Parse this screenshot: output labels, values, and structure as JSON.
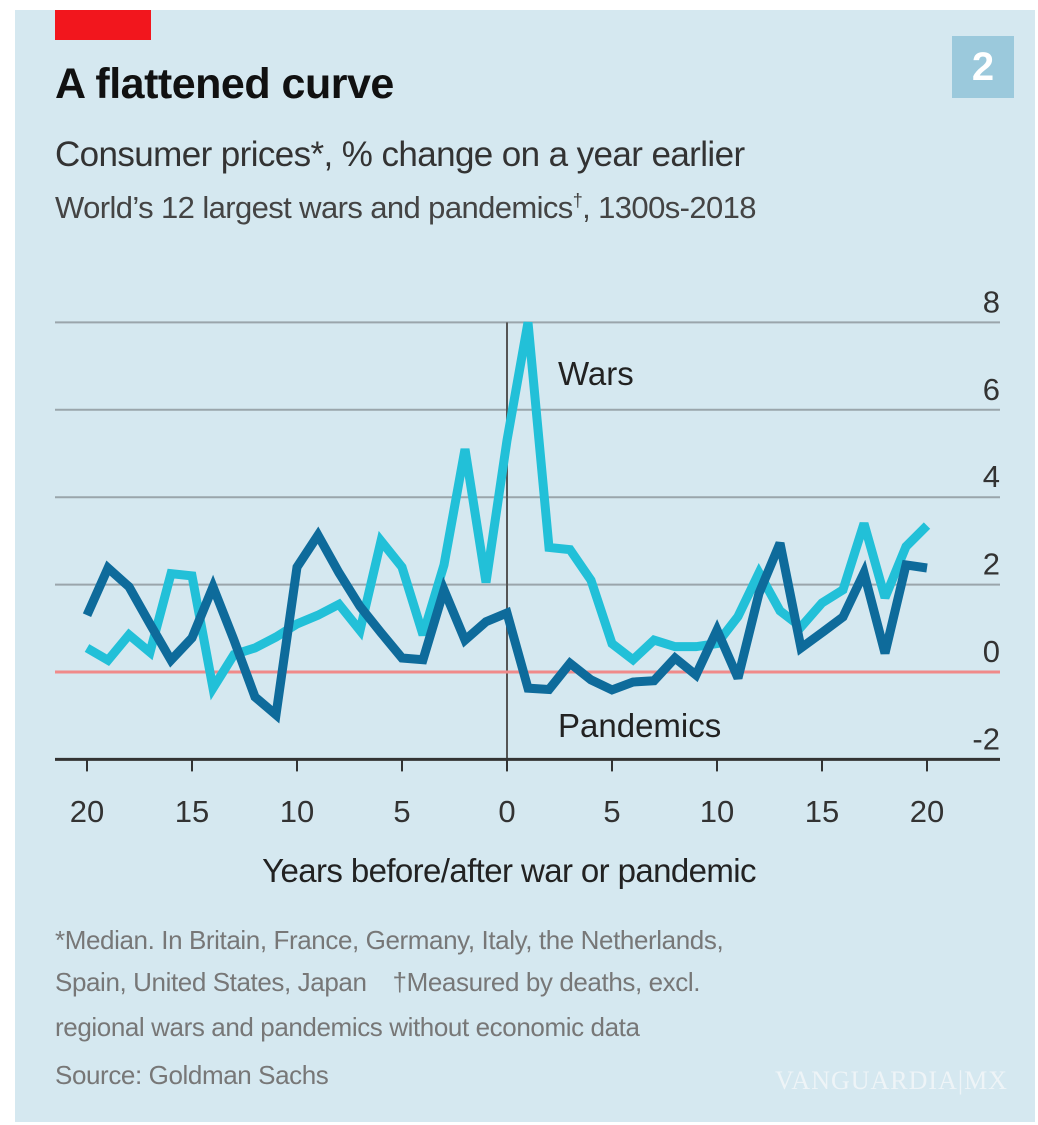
{
  "badge": "2",
  "watermark": "VANGUARDIA|MX",
  "colors": {
    "background": "#d5e8f0",
    "wars": "#22c0d8",
    "pandemics": "#0e6b9b",
    "zero_line": "#f08a8a",
    "accent_bar": "#f2161d",
    "badge": "#9bc9dc"
  },
  "footnotes": {
    "line1": "*Median. In Britain, France, Germany, Italy, the Netherlands,",
    "line2a": "Spain, United States, Japan",
    "line2b": "†Measured by deaths, excl.",
    "line3": "regional wars and pandemics without economic data",
    "source": "Source: Goldman Sachs"
  },
  "chart_data": {
    "type": "line",
    "title": "A flattened curve",
    "subtitle": "Consumer prices*, % change on a year earlier",
    "subtitle2_main": "World’s 12 largest wars and pandemics",
    "subtitle2_mark": "†",
    "subtitle2_tail": ", 1300s-2018",
    "xlabel": "Years before/after war or pandemic",
    "ylabel": "",
    "x": [
      -20,
      -19,
      -18,
      -17,
      -16,
      -15,
      -14,
      -13,
      -12,
      -11,
      -10,
      -9,
      -8,
      -7,
      -6,
      -5,
      -4,
      -3,
      -2,
      -1,
      0,
      1,
      2,
      3,
      4,
      5,
      6,
      7,
      8,
      9,
      10,
      11,
      12,
      13,
      14,
      15,
      16,
      17,
      18,
      19,
      20
    ],
    "x_ticks": [
      -20,
      -15,
      -10,
      -5,
      0,
      5,
      10,
      15,
      20
    ],
    "x_tick_labels": [
      "20",
      "15",
      "10",
      "5",
      "0",
      "5",
      "10",
      "15",
      "20"
    ],
    "y_ticks": [
      8,
      6,
      4,
      2,
      0,
      -2
    ],
    "y_tick_labels": [
      "8",
      "6",
      "4",
      "2",
      "0",
      "-2"
    ],
    "xlim": [
      -21,
      22
    ],
    "ylim": [
      -2,
      8
    ],
    "grid": true,
    "y_axis_side": "right",
    "series": [
      {
        "name": "Wars",
        "values": [
          0.55,
          0.27,
          0.85,
          0.45,
          2.25,
          2.2,
          -0.37,
          0.4,
          0.55,
          0.8,
          1.1,
          1.3,
          1.55,
          0.95,
          3.0,
          2.4,
          0.85,
          2.45,
          5.1,
          2.05,
          5.3,
          8.0,
          2.85,
          2.8,
          2.1,
          0.65,
          0.28,
          0.73,
          0.58,
          0.58,
          0.65,
          1.27,
          2.27,
          1.4,
          1.03,
          1.58,
          1.88,
          3.4,
          1.7,
          2.87,
          3.35
        ]
      },
      {
        "name": "Pandemics",
        "values": [
          1.3,
          2.38,
          1.95,
          1.1,
          0.27,
          0.78,
          1.95,
          0.73,
          -0.57,
          -0.98,
          2.4,
          3.13,
          2.27,
          1.5,
          0.9,
          0.32,
          0.28,
          1.88,
          0.73,
          1.15,
          1.35,
          -0.37,
          -0.4,
          0.2,
          -0.18,
          -0.41,
          -0.23,
          -0.2,
          0.32,
          -0.07,
          0.96,
          -0.14,
          1.8,
          2.95,
          0.55,
          0.9,
          1.26,
          2.27,
          0.43,
          2.45,
          2.38
        ]
      }
    ]
  }
}
